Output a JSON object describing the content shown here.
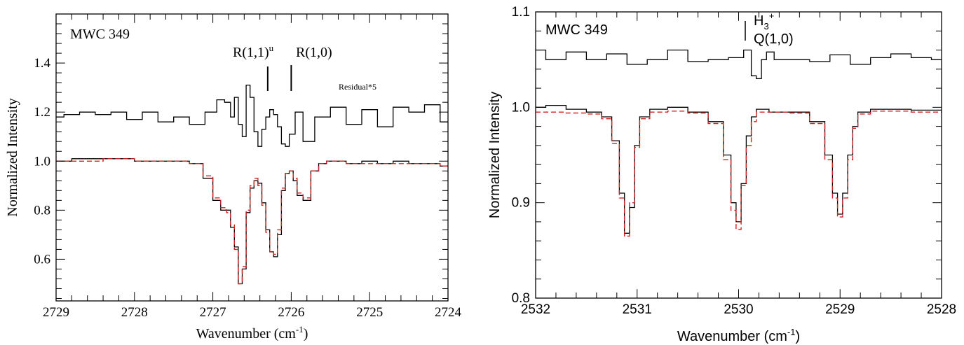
{
  "chart_data": [
    {
      "type": "line",
      "font": "serif",
      "title": "MWC 349",
      "xlabel": "Wavenumber (cm",
      "xlabel_sup": "-1",
      "xlabel_end": ")",
      "ylabel": "Normalized Intensity",
      "xlim": [
        2729,
        2724
      ],
      "ylim": [
        0.43,
        1.6
      ],
      "xticks": [
        2729,
        2728,
        2727,
        2726,
        2725,
        2724
      ],
      "yticks": [
        0.6,
        0.8,
        1.0,
        1.2,
        1.4
      ],
      "ytick_labels": [
        "0.6",
        "0.8",
        "1.0",
        "1.2",
        "1.4"
      ],
      "annotations": [
        {
          "text": "R(1,1)",
          "sup": "u",
          "x": 2726.3
        },
        {
          "text": "R(1,0)",
          "x": 2726.0
        },
        {
          "text": "Residual*5"
        }
      ],
      "series": [
        {
          "role": "residual",
          "color": "#000000",
          "dash": false,
          "x": [
            2729.0,
            2728.8,
            2728.6,
            2728.4,
            2728.2,
            2728.0,
            2727.8,
            2727.6,
            2727.4,
            2727.2,
            2727.0,
            2726.9,
            2726.8,
            2726.75,
            2726.7,
            2726.65,
            2726.6,
            2726.55,
            2726.5,
            2726.45,
            2726.4,
            2726.35,
            2726.3,
            2726.25,
            2726.2,
            2726.15,
            2726.1,
            2726.05,
            2726.0,
            2725.9,
            2725.8,
            2725.6,
            2725.4,
            2725.2,
            2725.0,
            2724.8,
            2724.6,
            2724.4,
            2724.2,
            2724.0
          ],
          "y": [
            1.18,
            1.19,
            1.2,
            1.19,
            1.2,
            1.17,
            1.2,
            1.16,
            1.18,
            1.15,
            1.2,
            1.25,
            1.24,
            1.18,
            1.26,
            1.15,
            1.1,
            1.31,
            1.26,
            1.12,
            1.06,
            1.13,
            1.18,
            1.21,
            1.19,
            1.14,
            1.07,
            1.06,
            1.11,
            1.2,
            1.08,
            1.18,
            1.22,
            1.15,
            1.21,
            1.14,
            1.22,
            1.2,
            1.23,
            1.16
          ]
        },
        {
          "role": "observed",
          "color": "#000000",
          "dash": false,
          "x": [
            2729.0,
            2728.6,
            2728.2,
            2727.8,
            2727.4,
            2727.2,
            2727.05,
            2726.95,
            2726.85,
            2726.8,
            2726.75,
            2726.7,
            2726.65,
            2726.6,
            2726.55,
            2726.5,
            2726.45,
            2726.4,
            2726.35,
            2726.3,
            2726.25,
            2726.2,
            2726.15,
            2726.1,
            2726.05,
            2726.0,
            2725.95,
            2725.9,
            2725.8,
            2725.7,
            2725.6,
            2725.5,
            2725.4,
            2725.2,
            2725.0,
            2724.8,
            2724.6,
            2724.4,
            2724.2,
            2724.0
          ],
          "y": [
            1.0,
            1.01,
            1.01,
            1.0,
            1.0,
            0.99,
            0.93,
            0.84,
            0.8,
            0.8,
            0.73,
            0.65,
            0.5,
            0.56,
            0.79,
            0.89,
            0.92,
            0.91,
            0.83,
            0.72,
            0.63,
            0.61,
            0.7,
            0.88,
            0.95,
            0.96,
            0.92,
            0.86,
            0.84,
            0.96,
            0.99,
            1.0,
            1.0,
            0.99,
            1.0,
            0.99,
            1.0,
            0.99,
            0.99,
            0.98
          ]
        },
        {
          "role": "model",
          "color": "#d42020",
          "dash": true,
          "x": [
            2729.0,
            2728.6,
            2728.2,
            2727.8,
            2727.4,
            2727.2,
            2727.05,
            2726.95,
            2726.85,
            2726.8,
            2726.75,
            2726.7,
            2726.65,
            2726.6,
            2726.55,
            2726.5,
            2726.45,
            2726.4,
            2726.35,
            2726.3,
            2726.25,
            2726.2,
            2726.15,
            2726.1,
            2726.05,
            2726.0,
            2725.95,
            2725.9,
            2725.8,
            2725.7,
            2725.6,
            2725.5,
            2725.4,
            2725.2,
            2725.0,
            2724.8,
            2724.6,
            2724.4,
            2724.2,
            2724.0
          ],
          "y": [
            1.0,
            1.0,
            1.01,
            1.0,
            1.0,
            0.99,
            0.94,
            0.85,
            0.81,
            0.79,
            0.74,
            0.64,
            0.5,
            0.57,
            0.8,
            0.9,
            0.93,
            0.9,
            0.82,
            0.71,
            0.63,
            0.62,
            0.72,
            0.89,
            0.95,
            0.96,
            0.93,
            0.87,
            0.85,
            0.96,
            0.99,
            1.0,
            1.0,
            0.99,
            0.99,
            0.99,
            0.99,
            0.99,
            0.99,
            0.98
          ]
        }
      ]
    },
    {
      "type": "line",
      "font": "sans",
      "title": "MWC 349",
      "xlabel": "Wavenumber (cm",
      "xlabel_sup": "-1",
      "xlabel_end": ")",
      "ylabel": "Normalized Intensity",
      "xlim": [
        2532,
        2528
      ],
      "ylim": [
        0.8,
        1.1
      ],
      "xticks": [
        2532,
        2531,
        2530,
        2529,
        2528
      ],
      "yticks": [
        0.8,
        0.9,
        1.0,
        1.1
      ],
      "ytick_labels": [
        "0.8",
        "0.9",
        "1.0",
        "1.1"
      ],
      "annotations": [
        {
          "text": "H",
          "sub": "3",
          "sup": "+",
          "x": 2529.83
        },
        {
          "text": "Q(1,0)"
        }
      ],
      "series": [
        {
          "role": "residual",
          "color": "#000000",
          "dash": false,
          "x": [
            2532.0,
            2531.8,
            2531.6,
            2531.4,
            2531.2,
            2531.0,
            2530.8,
            2530.6,
            2530.4,
            2530.2,
            2530.0,
            2529.9,
            2529.85,
            2529.8,
            2529.75,
            2529.7,
            2529.6,
            2529.4,
            2529.2,
            2529.0,
            2528.8,
            2528.6,
            2528.4,
            2528.2,
            2528.0
          ],
          "y": [
            1.06,
            1.05,
            1.058,
            1.05,
            1.056,
            1.045,
            1.05,
            1.06,
            1.048,
            1.05,
            1.052,
            1.06,
            1.033,
            1.03,
            1.05,
            1.058,
            1.05,
            1.05,
            1.048,
            1.055,
            1.045,
            1.052,
            1.056,
            1.052,
            1.05
          ]
        },
        {
          "role": "observed",
          "color": "#000000",
          "dash": false,
          "x": [
            2532.0,
            2531.8,
            2531.6,
            2531.4,
            2531.3,
            2531.2,
            2531.15,
            2531.1,
            2531.05,
            2531.0,
            2530.95,
            2530.8,
            2530.6,
            2530.4,
            2530.2,
            2530.1,
            2530.05,
            2530.0,
            2529.95,
            2529.9,
            2529.85,
            2529.8,
            2529.6,
            2529.4,
            2529.2,
            2529.1,
            2529.05,
            2529.0,
            2528.95,
            2528.9,
            2528.85,
            2528.8,
            2528.6,
            2528.4,
            2528.2,
            2528.0
          ],
          "y": [
            1.0,
            1.002,
            0.998,
            0.995,
            0.99,
            0.965,
            0.91,
            0.868,
            0.895,
            0.96,
            0.99,
            0.998,
            1.0,
            0.995,
            0.985,
            0.95,
            0.9,
            0.88,
            0.92,
            0.97,
            0.99,
            0.998,
            0.995,
            0.995,
            0.985,
            0.95,
            0.91,
            0.888,
            0.91,
            0.95,
            0.98,
            0.995,
            0.998,
            0.998,
            0.997,
            0.997
          ]
        },
        {
          "role": "model",
          "color": "#d42020",
          "dash": true,
          "x": [
            2532.0,
            2531.8,
            2531.6,
            2531.4,
            2531.3,
            2531.2,
            2531.15,
            2531.1,
            2531.05,
            2531.0,
            2530.95,
            2530.8,
            2530.6,
            2530.4,
            2530.2,
            2530.1,
            2530.05,
            2530.0,
            2529.95,
            2529.9,
            2529.85,
            2529.8,
            2529.6,
            2529.4,
            2529.2,
            2529.1,
            2529.05,
            2529.0,
            2528.95,
            2528.9,
            2528.85,
            2528.8,
            2528.6,
            2528.4,
            2528.2,
            2528.0
          ],
          "y": [
            0.995,
            0.995,
            0.994,
            0.993,
            0.988,
            0.962,
            0.905,
            0.865,
            0.9,
            0.958,
            0.988,
            0.995,
            0.996,
            0.994,
            0.983,
            0.945,
            0.892,
            0.872,
            0.918,
            0.96,
            0.985,
            0.995,
            0.995,
            0.994,
            0.983,
            0.945,
            0.905,
            0.885,
            0.905,
            0.945,
            0.978,
            0.993,
            0.996,
            0.996,
            0.995,
            0.995
          ]
        }
      ]
    }
  ]
}
